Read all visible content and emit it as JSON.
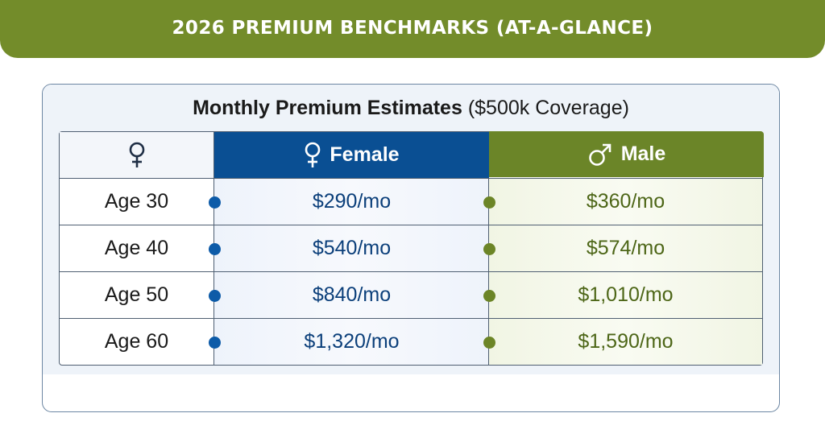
{
  "banner": {
    "title": "2026 PREMIUM BENCHMARKS (AT-A-GLANCE)"
  },
  "card": {
    "title_bold": "Monthly Premium Estimates",
    "title_rest": " ($500k Coverage)"
  },
  "table": {
    "columns": [
      {
        "label": "Female",
        "icon": "female-symbol-icon",
        "color": "#0a4f93"
      },
      {
        "label": "Male",
        "icon": "male-symbol-icon",
        "color": "#6b8528"
      }
    ],
    "header_icon": "female-symbol-icon",
    "rows": [
      {
        "label": "Age 30",
        "female": "$290/mo",
        "male": "$360/mo"
      },
      {
        "label": "Age 40",
        "female": "$540/mo",
        "male": "$574/mo"
      },
      {
        "label": "Age 50",
        "female": "$840/mo",
        "male": "$1,010/mo"
      },
      {
        "label": "Age 60",
        "female": "$1,320/mo",
        "male": "$1,590/mo"
      }
    ]
  },
  "colors": {
    "banner": "#738c2a",
    "female_accent": "#0a4f93",
    "male_accent": "#6b8528"
  }
}
